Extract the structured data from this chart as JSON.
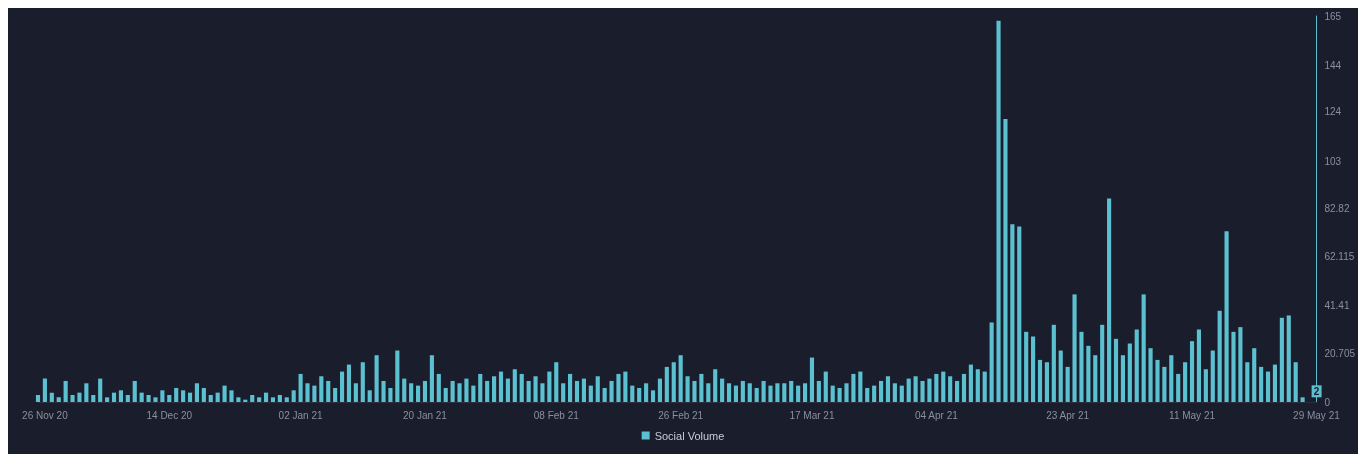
{
  "chart_data": {
    "type": "bar",
    "xlim": [
      "2020-11-25",
      "2021-05-29"
    ],
    "xticks": [
      {
        "value": "2020-11-26",
        "label": "26 Nov 20"
      },
      {
        "value": "2020-12-14",
        "label": "14 Dec 20"
      },
      {
        "value": "2021-01-02",
        "label": "02 Jan 21"
      },
      {
        "value": "2021-01-20",
        "label": "20 Jan 21"
      },
      {
        "value": "2021-02-08",
        "label": "08 Feb 21"
      },
      {
        "value": "2021-02-26",
        "label": "26 Feb 21"
      },
      {
        "value": "2021-03-17",
        "label": "17 Mar 21"
      },
      {
        "value": "2021-04-04",
        "label": "04 Apr 21"
      },
      {
        "value": "2021-04-23",
        "label": "23 Apr 21"
      },
      {
        "value": "2021-05-11",
        "label": "11 May 21"
      },
      {
        "value": "2021-05-29",
        "label": "29 May 21"
      }
    ],
    "ylim": [
      0,
      165
    ],
    "yticks": [
      0,
      20.705,
      41.41,
      62.115,
      82.82,
      103,
      124,
      144,
      165
    ],
    "grid": false,
    "legend": "bottom",
    "annotations": [
      {
        "text": "2",
        "x": "2021-05-27",
        "y": 2
      }
    ],
    "series": [
      {
        "name": "Social Volume",
        "color": "#5bc0d0",
        "x": [
          "2020-11-25",
          "2020-11-26",
          "2020-11-27",
          "2020-11-28",
          "2020-11-29",
          "2020-11-30",
          "2020-12-01",
          "2020-12-02",
          "2020-12-03",
          "2020-12-04",
          "2020-12-05",
          "2020-12-06",
          "2020-12-07",
          "2020-12-08",
          "2020-12-09",
          "2020-12-10",
          "2020-12-11",
          "2020-12-12",
          "2020-12-13",
          "2020-12-14",
          "2020-12-15",
          "2020-12-16",
          "2020-12-17",
          "2020-12-18",
          "2020-12-19",
          "2020-12-20",
          "2020-12-21",
          "2020-12-22",
          "2020-12-23",
          "2020-12-24",
          "2020-12-25",
          "2020-12-26",
          "2020-12-27",
          "2020-12-28",
          "2020-12-29",
          "2020-12-30",
          "2020-12-31",
          "2021-01-01",
          "2021-01-02",
          "2021-01-03",
          "2021-01-04",
          "2021-01-05",
          "2021-01-06",
          "2021-01-07",
          "2021-01-08",
          "2021-01-09",
          "2021-01-10",
          "2021-01-11",
          "2021-01-12",
          "2021-01-13",
          "2021-01-14",
          "2021-01-15",
          "2021-01-16",
          "2021-01-17",
          "2021-01-18",
          "2021-01-19",
          "2021-01-20",
          "2021-01-21",
          "2021-01-22",
          "2021-01-23",
          "2021-01-24",
          "2021-01-25",
          "2021-01-26",
          "2021-01-27",
          "2021-01-28",
          "2021-01-29",
          "2021-01-30",
          "2021-01-31",
          "2021-02-01",
          "2021-02-02",
          "2021-02-03",
          "2021-02-04",
          "2021-02-05",
          "2021-02-06",
          "2021-02-07",
          "2021-02-08",
          "2021-02-09",
          "2021-02-10",
          "2021-02-11",
          "2021-02-12",
          "2021-02-13",
          "2021-02-14",
          "2021-02-15",
          "2021-02-16",
          "2021-02-17",
          "2021-02-18",
          "2021-02-19",
          "2021-02-20",
          "2021-02-21",
          "2021-02-22",
          "2021-02-23",
          "2021-02-24",
          "2021-02-25",
          "2021-02-26",
          "2021-02-27",
          "2021-02-28",
          "2021-03-01",
          "2021-03-02",
          "2021-03-03",
          "2021-03-04",
          "2021-03-05",
          "2021-03-06",
          "2021-03-07",
          "2021-03-08",
          "2021-03-09",
          "2021-03-10",
          "2021-03-11",
          "2021-03-12",
          "2021-03-13",
          "2021-03-14",
          "2021-03-15",
          "2021-03-16",
          "2021-03-17",
          "2021-03-18",
          "2021-03-19",
          "2021-03-20",
          "2021-03-21",
          "2021-03-22",
          "2021-03-23",
          "2021-03-24",
          "2021-03-25",
          "2021-03-26",
          "2021-03-27",
          "2021-03-28",
          "2021-03-29",
          "2021-03-30",
          "2021-03-31",
          "2021-04-01",
          "2021-04-02",
          "2021-04-03",
          "2021-04-04",
          "2021-04-05",
          "2021-04-06",
          "2021-04-07",
          "2021-04-08",
          "2021-04-09",
          "2021-04-10",
          "2021-04-11",
          "2021-04-12",
          "2021-04-13",
          "2021-04-14",
          "2021-04-15",
          "2021-04-16",
          "2021-04-17",
          "2021-04-18",
          "2021-04-19",
          "2021-04-20",
          "2021-04-21",
          "2021-04-22",
          "2021-04-23",
          "2021-04-24",
          "2021-04-25",
          "2021-04-26",
          "2021-04-27",
          "2021-04-28",
          "2021-04-29",
          "2021-04-30",
          "2021-05-01",
          "2021-05-02",
          "2021-05-03",
          "2021-05-04",
          "2021-05-05",
          "2021-05-06",
          "2021-05-07",
          "2021-05-08",
          "2021-05-09",
          "2021-05-10",
          "2021-05-11",
          "2021-05-12",
          "2021-05-13",
          "2021-05-14",
          "2021-05-15",
          "2021-05-16",
          "2021-05-17",
          "2021-05-18",
          "2021-05-19",
          "2021-05-20",
          "2021-05-21",
          "2021-05-22",
          "2021-05-23",
          "2021-05-24",
          "2021-05-25",
          "2021-05-26",
          "2021-05-27"
        ],
        "values": [
          3,
          10,
          4,
          2,
          9,
          3,
          4,
          8,
          3,
          10,
          2,
          4,
          5,
          3,
          9,
          4,
          3,
          2,
          5,
          3,
          6,
          5,
          4,
          8,
          6,
          3,
          4,
          7,
          5,
          2,
          1,
          3,
          2,
          4,
          2,
          3,
          2,
          5,
          12,
          8,
          7,
          11,
          9,
          6,
          13,
          16,
          8,
          17,
          5,
          20,
          9,
          6,
          22,
          10,
          8,
          7,
          9,
          20,
          12,
          6,
          9,
          8,
          10,
          7,
          12,
          9,
          11,
          13,
          10,
          14,
          12,
          9,
          11,
          8,
          13,
          17,
          8,
          12,
          9,
          10,
          7,
          11,
          6,
          9,
          12,
          13,
          7,
          6,
          8,
          5,
          10,
          15,
          17,
          20,
          11,
          9,
          12,
          8,
          14,
          10,
          8,
          7,
          9,
          8,
          6,
          9,
          7,
          8,
          8,
          9,
          7,
          8,
          19,
          9,
          13,
          7,
          6,
          8,
          12,
          13,
          6,
          7,
          9,
          11,
          8,
          7,
          10,
          11,
          9,
          10,
          12,
          13,
          11,
          9,
          12,
          16,
          14,
          13,
          34,
          163,
          121,
          76,
          75,
          30,
          28,
          18,
          17,
          33,
          22,
          15,
          46,
          30,
          24,
          20,
          33,
          87,
          27,
          20,
          25,
          31,
          46,
          23,
          18,
          15,
          20,
          12,
          17,
          26,
          31,
          14,
          22,
          39,
          73,
          30,
          32,
          17,
          23,
          15,
          13,
          16,
          36,
          37,
          17,
          2
        ]
      }
    ]
  }
}
